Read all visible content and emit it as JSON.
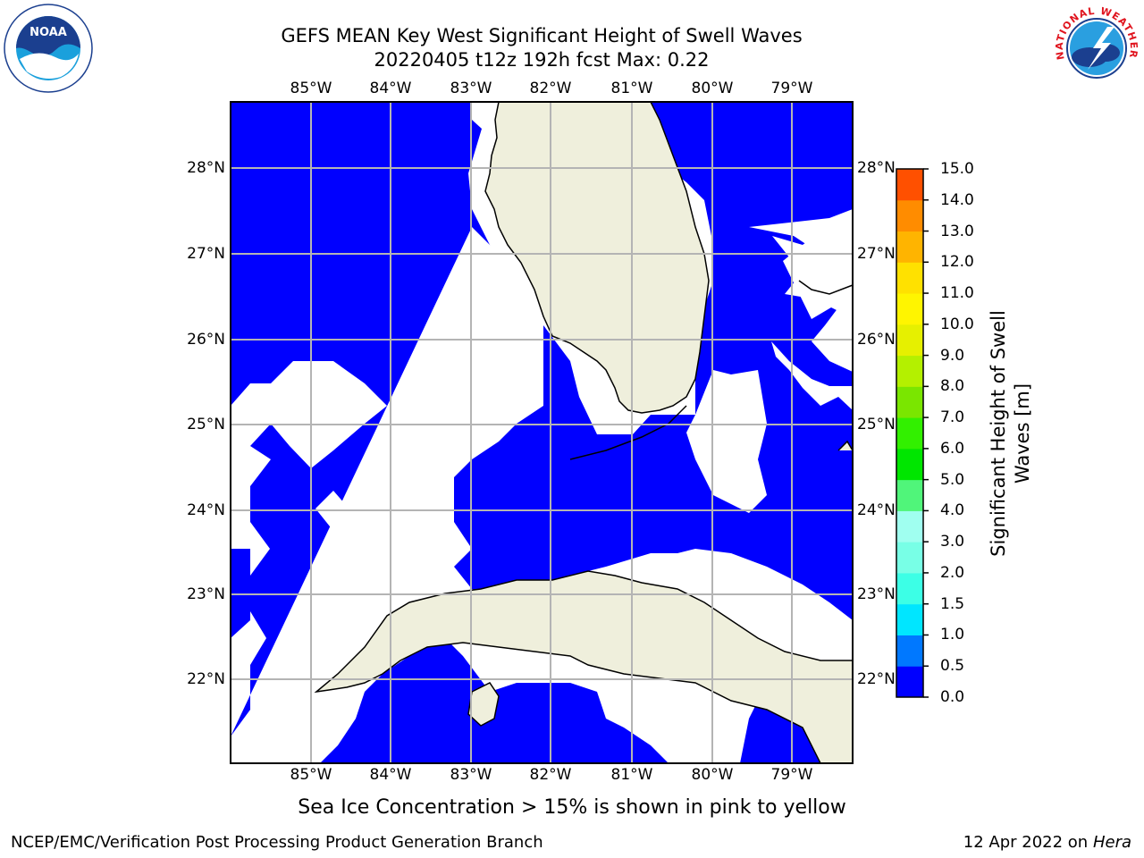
{
  "header": {
    "title_line1": "GEFS MEAN Key West Significant Height of Swell Waves",
    "title_line2": "20220405 t12z 192h fcst   Max: 0.22"
  },
  "logos": {
    "noaa_text": "NOAA",
    "nws_text": "NATIONAL WEATHER SERVICE"
  },
  "map": {
    "lon_labels": [
      "85°W",
      "84°W",
      "83°W",
      "82°W",
      "81°W",
      "80°W",
      "79°W"
    ],
    "lat_labels": [
      "28°N",
      "27°N",
      "26°N",
      "25°N",
      "24°N",
      "23°N",
      "22°N"
    ],
    "colors": {
      "ocean_fill": "#0000ff",
      "land": "#efefdc",
      "gridline": "#b4b4b4",
      "no_data": "#ffffff"
    }
  },
  "colorbar": {
    "label": "Significant Height of Swell Waves [m]",
    "ticks": [
      "0.0",
      "0.5",
      "1.0",
      "1.5",
      "2.0",
      "3.0",
      "4.0",
      "5.0",
      "6.0",
      "7.0",
      "8.0",
      "9.0",
      "10.0",
      "11.0",
      "12.0",
      "13.0",
      "14.0",
      "15.0"
    ],
    "colors": [
      "#0000ff",
      "#0078ff",
      "#00e6ff",
      "#3cffe6",
      "#78ffe6",
      "#a0fff0",
      "#50f57a",
      "#00e600",
      "#32f000",
      "#7ae600",
      "#b4f000",
      "#e6f000",
      "#fff500",
      "#ffe100",
      "#ffb400",
      "#ff8c00",
      "#ff5000",
      "#ff2800",
      "#ff0000"
    ]
  },
  "caption": "Sea Ice Concentration > 15% is shown in pink to yellow",
  "footer": {
    "left": "NCEP/EMC/Verification Post Processing Product Generation Branch",
    "right_date": "12 Apr 2022 on ",
    "right_host": "Hera"
  }
}
